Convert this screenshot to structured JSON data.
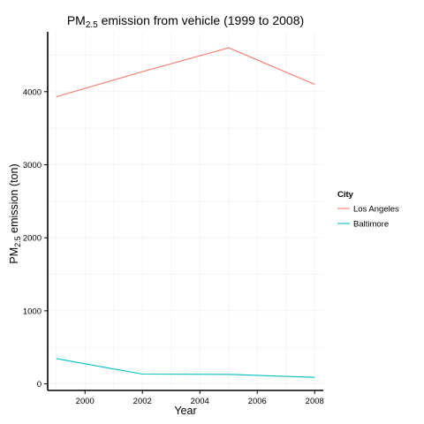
{
  "chart_data": {
    "type": "line",
    "title": {
      "prefix": "PM",
      "sub": "2.5",
      "suffix": " emission from vehicle (1999 to 2008)"
    },
    "xlabel": "Year",
    "ylabel": {
      "prefix": "PM",
      "sub": "2.5",
      "suffix": " emission (ton)"
    },
    "xlim": [
      1998.7,
      2008.3
    ],
    "ylim": [
      -90,
      4820
    ],
    "x_ticks": [
      2000,
      2002,
      2004,
      2006,
      2008
    ],
    "y_ticks": [
      0,
      1000,
      2000,
      3000,
      4000
    ],
    "grid": true,
    "legend": {
      "title": "City",
      "position": "right"
    },
    "x": [
      1999,
      2002,
      2005,
      2008
    ],
    "series": [
      {
        "name": "Los Angeles",
        "color": "#F8766D",
        "values": [
          3931,
          4274,
          4601,
          4101
        ]
      },
      {
        "name": "Baltimore",
        "color": "#00BFC4",
        "values": [
          347,
          134,
          130,
          89
        ]
      }
    ]
  }
}
